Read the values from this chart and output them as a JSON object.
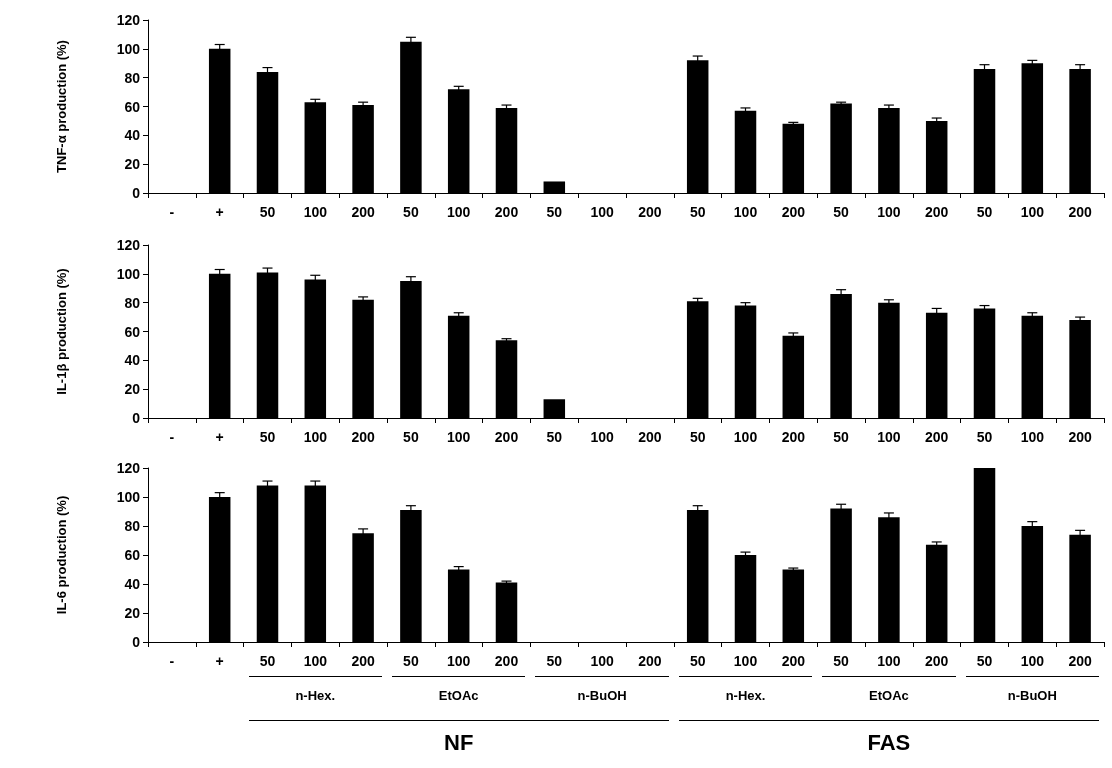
{
  "chart_data": [
    {
      "type": "bar",
      "ylabel": "TNF-α production (%)",
      "categories": [
        "-",
        "+",
        "50",
        "100",
        "200",
        "50",
        "100",
        "200",
        "50",
        "100",
        "200",
        "50",
        "100",
        "200",
        "50",
        "100",
        "200",
        "50",
        "100",
        "200"
      ],
      "values": [
        null,
        100,
        84,
        63,
        61,
        105,
        72,
        59,
        8,
        null,
        null,
        92,
        57,
        48,
        62,
        59,
        50,
        86,
        90,
        86
      ],
      "errors": [
        null,
        3,
        3,
        2,
        2,
        3,
        2,
        2,
        null,
        null,
        null,
        3,
        2,
        1,
        1,
        2,
        2,
        3,
        2,
        3
      ],
      "color": "#000000",
      "ylim": [
        0,
        120
      ],
      "yticks": [
        0,
        20,
        40,
        60,
        80,
        100,
        120
      ],
      "grid": false
    },
    {
      "type": "bar",
      "ylabel": "IL-1β production (%)",
      "categories": [
        "-",
        "+",
        "50",
        "100",
        "200",
        "50",
        "100",
        "200",
        "50",
        "100",
        "200",
        "50",
        "100",
        "200",
        "50",
        "100",
        "200",
        "50",
        "100",
        "200"
      ],
      "values": [
        null,
        100,
        101,
        96,
        82,
        95,
        71,
        54,
        13,
        null,
        null,
        81,
        78,
        57,
        86,
        80,
        73,
        76,
        71,
        68
      ],
      "errors": [
        null,
        3,
        3,
        3,
        2,
        3,
        2,
        1,
        null,
        null,
        null,
        2,
        2,
        2,
        3,
        2,
        3,
        2,
        2,
        2
      ],
      "color": "#000000",
      "ylim": [
        0,
        120
      ],
      "yticks": [
        0,
        20,
        40,
        60,
        80,
        100,
        120
      ],
      "grid": false
    },
    {
      "type": "bar",
      "ylabel": "IL-6 production (%)",
      "categories": [
        "-",
        "+",
        "50",
        "100",
        "200",
        "50",
        "100",
        "200",
        "50",
        "100",
        "200",
        "50",
        "100",
        "200",
        "50",
        "100",
        "200",
        "50",
        "100",
        "200"
      ],
      "values": [
        null,
        100,
        108,
        108,
        75,
        91,
        50,
        41,
        null,
        null,
        null,
        91,
        60,
        50,
        92,
        86,
        67,
        120,
        80,
        74
      ],
      "errors": [
        null,
        3,
        3,
        3,
        3,
        3,
        2,
        1,
        null,
        null,
        null,
        3,
        2,
        1,
        3,
        3,
        2,
        null,
        3,
        3
      ],
      "color": "#000000",
      "ylim": [
        0,
        120
      ],
      "yticks": [
        0,
        20,
        40,
        60,
        80,
        100,
        120
      ],
      "grid": false,
      "annotations": [
        "n-Hex.",
        "EtOAc",
        "n-BuOH",
        "n-Hex.",
        "EtOAc",
        "n-BuOH",
        "NF",
        "FAS"
      ]
    }
  ]
}
